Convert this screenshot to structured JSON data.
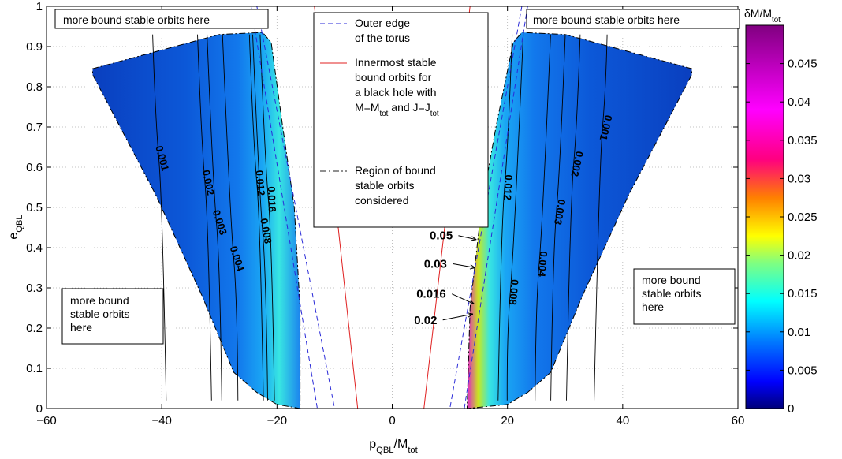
{
  "chart_data": {
    "type": "contour",
    "xlabel": "p",
    "xlabel_sub": "QBL",
    "xlabel_tail": "/M",
    "xlabel_tail_sub": "tot",
    "ylabel": "e",
    "ylabel_sub": "QBL",
    "xlim": [
      -60,
      60
    ],
    "ylim": [
      0,
      1
    ],
    "xticks": [
      -60,
      -40,
      -20,
      0,
      20,
      40,
      60
    ],
    "xtick_labels": [
      "−60",
      "−40",
      "−20",
      "0",
      "20",
      "40",
      "60"
    ],
    "yticks": [
      0,
      0.1,
      0.2,
      0.3,
      0.4,
      0.5,
      0.6,
      0.7,
      0.8,
      0.9,
      1
    ],
    "ytick_labels": [
      "0",
      "0.1",
      "0.2",
      "0.3",
      "0.4",
      "0.5",
      "0.6",
      "0.7",
      "0.8",
      "0.9",
      "1"
    ],
    "grid": true,
    "colorbar": {
      "title": "δM/M",
      "title_sub": "tot",
      "range": [
        0,
        0.05
      ],
      "ticks": [
        0,
        0.005,
        0.01,
        0.015,
        0.02,
        0.025,
        0.03,
        0.035,
        0.04,
        0.045
      ],
      "tick_labels": [
        "0",
        "0.005",
        "0.01",
        "0.015",
        "0.02",
        "0.025",
        "0.03",
        "0.035",
        "0.04",
        "0.045"
      ]
    },
    "legend": {
      "placement": "top-center",
      "entries": [
        {
          "style": "dashed",
          "color": "#2a2ad8",
          "lines": [
            "Outer edge",
            "of the torus"
          ]
        },
        {
          "style": "solid",
          "color": "#e02020",
          "lines": [
            "Innermost stable",
            "bound orbits for",
            "a black hole with"
          ],
          "mass_line": {
            "a": "M=M",
            "a_sub": "tot",
            "b": " and J=J",
            "b_sub": "tot"
          }
        },
        {
          "style": "dashdot",
          "color": "#202020",
          "lines": [
            "Region of bound",
            "stable orbits",
            "considered"
          ]
        }
      ]
    },
    "region_boundary": {
      "left": [
        [
          -23.5,
          0.04
        ],
        [
          -27.5,
          0.09
        ],
        [
          -33,
          0.28
        ],
        [
          -41,
          0.53
        ],
        [
          -52,
          0.83
        ],
        [
          -52,
          0.845
        ],
        [
          -30,
          0.93
        ],
        [
          -22.5,
          0.935
        ],
        [
          -21,
          0.91
        ],
        [
          -19,
          0.7
        ],
        [
          -17,
          0.5
        ],
        [
          -16,
          0.25
        ],
        [
          -16,
          0
        ],
        [
          -20,
          0.01
        ],
        [
          -23.5,
          0.04
        ]
      ],
      "right": [
        [
          23.5,
          0.04
        ],
        [
          27.5,
          0.09
        ],
        [
          33,
          0.28
        ],
        [
          41,
          0.53
        ],
        [
          52,
          0.83
        ],
        [
          52,
          0.845
        ],
        [
          30,
          0.93
        ],
        [
          22.5,
          0.935
        ],
        [
          21,
          0.91
        ],
        [
          18,
          0.7
        ],
        [
          15.5,
          0.5
        ],
        [
          13.5,
          0.25
        ],
        [
          13,
          0
        ],
        [
          20,
          0.01
        ],
        [
          23.5,
          0.04
        ]
      ]
    },
    "torus_outer_edge": {
      "left": [
        [
          [
            -24.5,
            1
          ],
          [
            -13,
            0
          ]
        ],
        [
          [
            -23.5,
            1
          ],
          [
            -10,
            0
          ]
        ]
      ],
      "right": [
        [
          [
            22.5,
            1
          ],
          [
            10,
            0
          ]
        ],
        [
          [
            23.5,
            1
          ],
          [
            12.5,
            0
          ]
        ]
      ]
    },
    "isco": {
      "left": [
        [
          -13.5,
          1
        ],
        [
          -6,
          0
        ]
      ],
      "right": [
        [
          13.5,
          1
        ],
        [
          5.5,
          0
        ]
      ]
    },
    "contour_labels_left": [
      {
        "text": "0.001",
        "x": -40.5,
        "y": 0.62,
        "rot": 75
      },
      {
        "text": "0.002",
        "x": -32.5,
        "y": 0.56,
        "rot": 78
      },
      {
        "text": "0.003",
        "x": -30.5,
        "y": 0.46,
        "rot": 72
      },
      {
        "text": "0.004",
        "x": -27.5,
        "y": 0.37,
        "rot": 72
      },
      {
        "text": "0.008",
        "x": -22.5,
        "y": 0.44,
        "rot": 80
      },
      {
        "text": "0.012",
        "x": -23.5,
        "y": 0.56,
        "rot": 85
      },
      {
        "text": "0.016",
        "x": -21.5,
        "y": 0.52,
        "rot": 88
      }
    ],
    "contour_labels_right": [
      {
        "text": "0.001",
        "x": 36.5,
        "y": 0.7,
        "rot": 103
      },
      {
        "text": "0.002",
        "x": 31.5,
        "y": 0.61,
        "rot": 102
      },
      {
        "text": "0.003",
        "x": 28.5,
        "y": 0.49,
        "rot": 100
      },
      {
        "text": "0.004",
        "x": 25.5,
        "y": 0.36,
        "rot": 95
      },
      {
        "text": "0.008",
        "x": 20.5,
        "y": 0.29,
        "rot": 95
      },
      {
        "text": "0.012",
        "x": 19.5,
        "y": 0.55,
        "rot": 93
      }
    ],
    "callouts": [
      {
        "text": "0.05",
        "x": 6.5,
        "y": 0.43,
        "tx": 14.6,
        "ty": 0.42
      },
      {
        "text": "0.03",
        "x": 5.5,
        "y": 0.36,
        "tx": 14.4,
        "ty": 0.35
      },
      {
        "text": "0.016",
        "x": 4.2,
        "y": 0.285,
        "tx": 14.2,
        "ty": 0.26
      },
      {
        "text": "0.02",
        "x": 3.8,
        "y": 0.22,
        "tx": 14.0,
        "ty": 0.235
      }
    ],
    "annotations": [
      {
        "id": "top-left",
        "lines": [
          "more bound stable orbits here"
        ]
      },
      {
        "id": "top-right",
        "lines": [
          "more bound stable orbits here"
        ]
      },
      {
        "id": "mid-left",
        "lines": [
          "more bound",
          "stable orbits",
          "here"
        ]
      },
      {
        "id": "mid-right",
        "lines": [
          "more bound",
          "stable orbits",
          "here"
        ]
      }
    ]
  }
}
